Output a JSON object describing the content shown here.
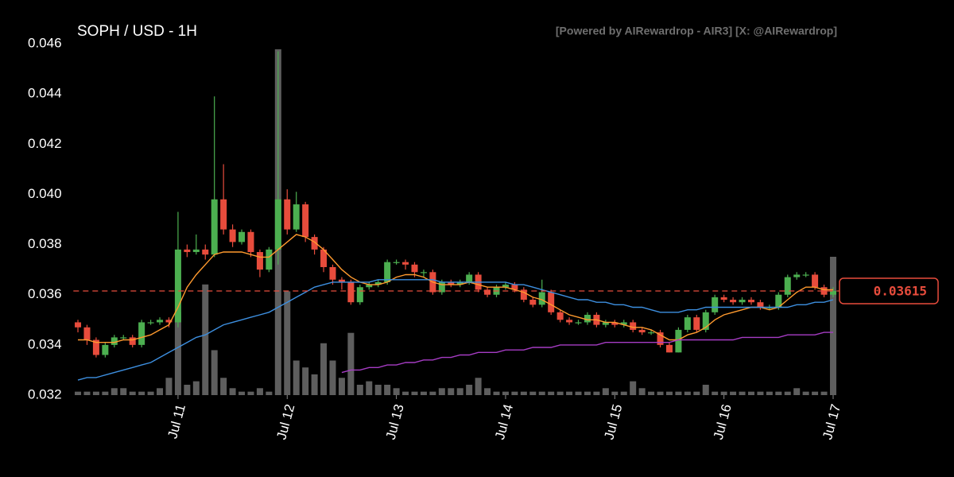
{
  "chart_data": {
    "type": "candlestick",
    "title": "SOPH / USD - 1H",
    "watermark": "[Powered by AIRewardrop - AIR3] [X: @AIRewardrop]",
    "up_color": "#4caf50",
    "down_color": "#e74c3c",
    "ylim": [
      0.032,
      0.046
    ],
    "yticks": [
      0.032,
      0.034,
      0.036,
      0.038,
      {
        "value": 0.04,
        "label": "0.040"
      },
      0.042,
      0.044,
      0.046
    ],
    "xlim": [
      -0.5,
      83.5
    ],
    "xticks": [
      {
        "value": 11,
        "label": "Jul 11"
      },
      {
        "value": 23,
        "label": "Jul 12"
      },
      {
        "value": 35,
        "label": "Jul 13"
      },
      {
        "value": 47,
        "label": "Jul 14"
      },
      {
        "value": 59,
        "label": "Jul 15"
      },
      {
        "value": 71,
        "label": "Jul 16"
      },
      {
        "value": 83,
        "label": "Jul 17"
      }
    ],
    "open": [
      0.0349,
      0.0347,
      0.0342,
      0.0336,
      0.034,
      0.0343,
      0.0343,
      0.034,
      0.0349,
      0.0349,
      0.035,
      0.0349,
      0.0378,
      0.0377,
      0.0378,
      0.0376,
      0.0398,
      0.0386,
      0.0381,
      0.0385,
      0.0377,
      0.037,
      0.0378,
      0.0398,
      0.0386,
      0.0396,
      0.0383,
      0.0378,
      0.0371,
      0.0366,
      0.0365,
      0.0357,
      0.0363,
      0.0364,
      0.0365,
      0.0373,
      0.0373,
      0.0372,
      0.0369,
      0.0369,
      0.0361,
      0.0365,
      0.0364,
      0.0365,
      0.0368,
      0.0362,
      0.036,
      0.0363,
      0.0364,
      0.0362,
      0.0358,
      0.0356,
      0.0361,
      0.0353,
      0.035,
      0.0349,
      0.0349,
      0.0352,
      0.0348,
      0.0349,
      0.0348,
      0.0349,
      0.0346,
      0.0345,
      0.0345,
      0.034,
      0.0337,
      0.0346,
      0.0351,
      0.0346,
      0.0353,
      0.0359,
      0.0358,
      0.0357,
      0.0358,
      0.0357,
      0.0355,
      0.0355,
      0.036,
      0.0367,
      0.0368,
      0.0368,
      0.0363,
      0.036
    ],
    "high": [
      0.035,
      0.0348,
      0.0343,
      0.0341,
      0.0344,
      0.0344,
      0.0344,
      0.035,
      0.035,
      0.0351,
      0.0351,
      0.0393,
      0.038,
      0.0384,
      0.038,
      0.0439,
      0.0412,
      0.0388,
      0.0386,
      0.0386,
      0.0378,
      0.0379,
      0.0457,
      0.0402,
      0.0401,
      0.0397,
      0.0384,
      0.0379,
      0.0372,
      0.0367,
      0.0366,
      0.0364,
      0.0365,
      0.0366,
      0.0374,
      0.0374,
      0.0374,
      0.0373,
      0.037,
      0.037,
      0.0366,
      0.0366,
      0.0366,
      0.0369,
      0.0369,
      0.0363,
      0.0364,
      0.0365,
      0.0365,
      0.0363,
      0.0359,
      0.0366,
      0.0362,
      0.0354,
      0.0351,
      0.035,
      0.0353,
      0.0353,
      0.035,
      0.035,
      0.035,
      0.035,
      0.0347,
      0.0346,
      0.0346,
      0.0341,
      0.0347,
      0.0352,
      0.0352,
      0.0354,
      0.036,
      0.036,
      0.0359,
      0.0359,
      0.0359,
      0.0358,
      0.0356,
      0.0361,
      0.0368,
      0.0369,
      0.0369,
      0.0369,
      0.0364,
      0.0363
    ],
    "low": [
      0.0345,
      0.034,
      0.0335,
      0.0335,
      0.0339,
      0.0342,
      0.0339,
      0.0339,
      0.0348,
      0.0348,
      0.0347,
      0.0347,
      0.0375,
      0.0376,
      0.0374,
      0.0375,
      0.0384,
      0.0379,
      0.038,
      0.0375,
      0.0367,
      0.0369,
      0.0372,
      0.0384,
      0.0385,
      0.0381,
      0.0376,
      0.0369,
      0.0364,
      0.0362,
      0.0356,
      0.0356,
      0.0362,
      0.0363,
      0.0364,
      0.0372,
      0.037,
      0.0367,
      0.0367,
      0.036,
      0.036,
      0.0363,
      0.0363,
      0.0364,
      0.0361,
      0.0359,
      0.0359,
      0.0362,
      0.0361,
      0.0357,
      0.0355,
      0.0355,
      0.0352,
      0.0349,
      0.0348,
      0.0348,
      0.0348,
      0.0347,
      0.0347,
      0.0347,
      0.0347,
      0.0345,
      0.0344,
      0.0344,
      0.0339,
      0.0337,
      0.0337,
      0.0345,
      0.0345,
      0.0345,
      0.0352,
      0.0357,
      0.0356,
      0.0356,
      0.0356,
      0.0354,
      0.0354,
      0.0354,
      0.0359,
      0.0366,
      0.0367,
      0.0362,
      0.0359,
      0.0359
    ],
    "close": [
      0.0347,
      0.0342,
      0.0336,
      0.034,
      0.0343,
      0.0343,
      0.034,
      0.0349,
      0.0349,
      0.035,
      0.0349,
      0.0378,
      0.0377,
      0.0378,
      0.0376,
      0.0398,
      0.0386,
      0.0381,
      0.0385,
      0.0377,
      0.037,
      0.0378,
      0.0398,
      0.0386,
      0.0396,
      0.0383,
      0.0378,
      0.0371,
      0.0366,
      0.0365,
      0.0357,
      0.0363,
      0.0364,
      0.0365,
      0.0373,
      0.0373,
      0.0372,
      0.0369,
      0.0369,
      0.0361,
      0.0365,
      0.0364,
      0.0365,
      0.0368,
      0.0362,
      0.036,
      0.0363,
      0.0364,
      0.0362,
      0.0358,
      0.0356,
      0.0361,
      0.0353,
      0.035,
      0.0349,
      0.0349,
      0.0352,
      0.0348,
      0.0349,
      0.0348,
      0.0349,
      0.0346,
      0.0345,
      0.0345,
      0.034,
      0.0337,
      0.0346,
      0.0351,
      0.0346,
      0.0353,
      0.0359,
      0.0358,
      0.0357,
      0.0358,
      0.0357,
      0.0355,
      0.0355,
      0.036,
      0.0367,
      0.0368,
      0.0368,
      0.0363,
      0.036,
      0.03615
    ],
    "volume": [
      1,
      1,
      1,
      1,
      2,
      2,
      1,
      1,
      1,
      2,
      5,
      24,
      3,
      4,
      32,
      13,
      5,
      2,
      1,
      1,
      2,
      1,
      100,
      30,
      10,
      8,
      6,
      15,
      10,
      5,
      18,
      3,
      4,
      3,
      3,
      2,
      1,
      1,
      1,
      1,
      2,
      2,
      2,
      3,
      5,
      2,
      1,
      1,
      1,
      1,
      1,
      1,
      1,
      1,
      1,
      1,
      1,
      1,
      2,
      1,
      1,
      4,
      2,
      1,
      1,
      1,
      1,
      1,
      1,
      3,
      1,
      1,
      1,
      1,
      1,
      1,
      1,
      1,
      1,
      2,
      1,
      1,
      1,
      40
    ],
    "volume_color": "#6e6e6e",
    "series": [
      {
        "color": "#ff9a2e",
        "values": [
          0.0342,
          0.0342,
          0.0341,
          0.0341,
          0.0341,
          0.0342,
          0.0342,
          0.0343,
          0.0344,
          0.0346,
          0.0348,
          0.0355,
          0.0363,
          0.0368,
          0.0372,
          0.0376,
          0.0377,
          0.0377,
          0.0377,
          0.0376,
          0.0375,
          0.0375,
          0.0378,
          0.0381,
          0.0384,
          0.0383,
          0.0381,
          0.0378,
          0.0374,
          0.037,
          0.0367,
          0.0365,
          0.0364,
          0.0364,
          0.0365,
          0.0367,
          0.0368,
          0.0368,
          0.0367,
          0.0365,
          0.0364,
          0.0364,
          0.0364,
          0.0365,
          0.0364,
          0.0363,
          0.0363,
          0.0363,
          0.0362,
          0.0361,
          0.0359,
          0.0358,
          0.0356,
          0.0354,
          0.0352,
          0.0351,
          0.035,
          0.035,
          0.0349,
          0.0349,
          0.0348,
          0.0347,
          0.0347,
          0.0346,
          0.0344,
          0.0342,
          0.0342,
          0.0344,
          0.0345,
          0.0347,
          0.035,
          0.0352,
          0.0353,
          0.0354,
          0.0355,
          0.0355,
          0.0354,
          0.0355,
          0.0358,
          0.0361,
          0.0363,
          0.0363,
          0.0362,
          0.0362
        ]
      },
      {
        "color": "#3d8fe0",
        "values": [
          0.0326,
          0.0327,
          0.0327,
          0.0328,
          0.0329,
          0.033,
          0.0331,
          0.0332,
          0.0333,
          0.0335,
          0.0337,
          0.0339,
          0.0341,
          0.0343,
          0.0344,
          0.0346,
          0.0348,
          0.0349,
          0.035,
          0.0351,
          0.0352,
          0.0353,
          0.0355,
          0.0357,
          0.0359,
          0.0361,
          0.0363,
          0.0364,
          0.0365,
          0.0365,
          0.0365,
          0.0365,
          0.0365,
          0.0366,
          0.0366,
          0.0366,
          0.0366,
          0.0366,
          0.0366,
          0.0366,
          0.0365,
          0.0365,
          0.0365,
          0.0365,
          0.0365,
          0.0365,
          0.0365,
          0.0365,
          0.0364,
          0.0364,
          0.0363,
          0.0362,
          0.0361,
          0.036,
          0.0359,
          0.0358,
          0.0358,
          0.0357,
          0.0357,
          0.0356,
          0.0356,
          0.0355,
          0.0355,
          0.0354,
          0.0353,
          0.0353,
          0.0353,
          0.0354,
          0.0354,
          0.0355,
          0.0355,
          0.0355,
          0.0355,
          0.0355,
          0.0355,
          0.0355,
          0.0355,
          0.0355,
          0.0355,
          0.0356,
          0.0356,
          0.0357,
          0.0357,
          0.0358
        ]
      },
      {
        "color": "#a63cc4",
        "values": [
          null,
          null,
          null,
          null,
          null,
          null,
          null,
          null,
          null,
          null,
          null,
          null,
          null,
          null,
          null,
          null,
          null,
          null,
          null,
          null,
          null,
          null,
          null,
          null,
          null,
          null,
          null,
          null,
          null,
          0.0329,
          0.033,
          0.033,
          0.0331,
          0.0331,
          0.0332,
          0.0332,
          0.0333,
          0.0333,
          0.0334,
          0.0334,
          0.0335,
          0.0335,
          0.0336,
          0.0336,
          0.0337,
          0.0337,
          0.0337,
          0.0338,
          0.0338,
          0.0338,
          0.0339,
          0.0339,
          0.0339,
          0.034,
          0.034,
          0.034,
          0.034,
          0.034,
          0.0341,
          0.0341,
          0.0341,
          0.0341,
          0.0341,
          0.0341,
          0.0341,
          0.0341,
          0.0342,
          0.0342,
          0.0342,
          0.0342,
          0.0342,
          0.0342,
          0.0342,
          0.0343,
          0.0343,
          0.0343,
          0.0343,
          0.0343,
          0.0344,
          0.0344,
          0.0344,
          0.0344,
          0.0345,
          0.0345
        ]
      }
    ],
    "last_price": 0.03615,
    "last_price_color": "#e74c3c"
  }
}
